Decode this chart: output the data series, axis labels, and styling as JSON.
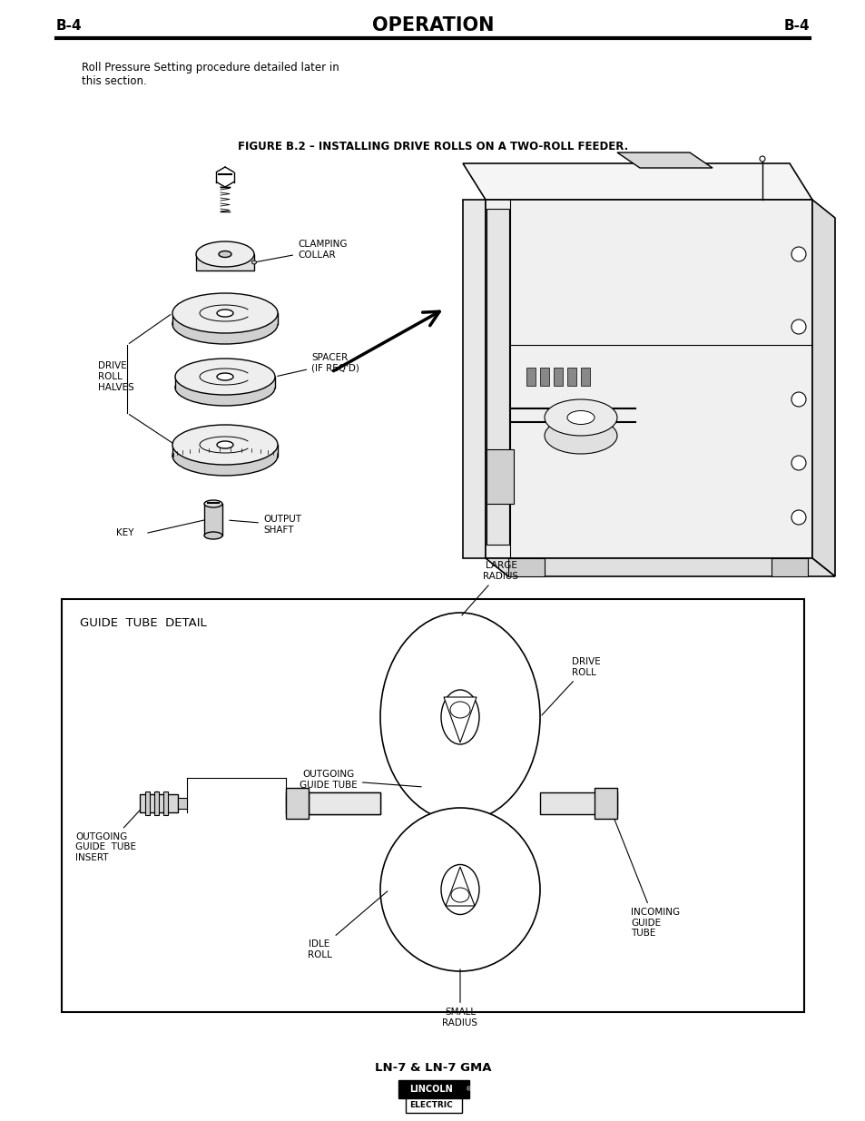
{
  "bg_color": "#ffffff",
  "header_text": "OPERATION",
  "header_left": "B-4",
  "header_right": "B-4",
  "footer_text": "LN-7 & LN-7 GMA",
  "body_text_line1": "Roll Pressure Setting procedure detailed later in",
  "body_text_line2": "this section.",
  "figure_title": "FIGURE B.2 – INSTALLING DRIVE ROLLS ON A TWO-ROLL FEEDER.",
  "guide_tube_title": "GUIDE  TUBE  DETAIL",
  "label_clamping_collar": "CLAMPING\nCOLLAR",
  "label_spacer": "SPACER\n(IF REQ'D)",
  "label_drive_roll_halves": "DRIVE\nROLL\nHALVES",
  "label_key": "KEY",
  "label_output_shaft": "OUTPUT\nSHAFT",
  "label_large_radius": "LARGE\nRADIUS",
  "label_drive_roll": "DRIVE\nROLL",
  "label_outgoing_guide_tube": "OUTGOING\nGUIDE TUBE",
  "label_outgoing_insert": "OUTGOING\nGUIDE  TUBE\nINSERT",
  "label_idle_roll": "IDLE\nROLL",
  "label_small_radius": "SMALL\nRADIUS",
  "label_incoming_guide_tube": "INCOMING\nGUIDE\nTUBE"
}
